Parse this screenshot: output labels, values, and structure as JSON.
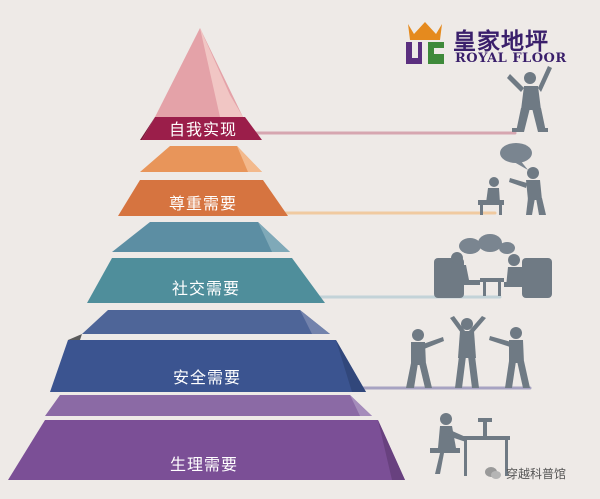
{
  "brand": {
    "name_cn": "皇家地坪",
    "name_en": "ROYAL FLOOR",
    "colors": {
      "crown": "#e58a1e",
      "emblem_purple": "#5b2f7f",
      "emblem_green": "#3e8a3a",
      "text": "#3a1f6b"
    }
  },
  "pyramid": {
    "tiers": [
      {
        "label": "自我实现",
        "color": "#9b1e4a",
        "top_color": "#e9a0a6"
      },
      {
        "label": "尊重需要",
        "color": "#d67440",
        "top_color": "#ec9f6b"
      },
      {
        "label": "社交需要",
        "color": "#4f8e9b",
        "top_color": "#5d8fa6"
      },
      {
        "label": "安全需要",
        "color": "#3b5490",
        "top_color": "#4e6598"
      },
      {
        "label": "生理需要",
        "color": "#7b4f96",
        "top_color": "#8b6aa5"
      }
    ]
  },
  "watermark": {
    "text": "穿越科普馆",
    "icon": "wechat-icon"
  }
}
